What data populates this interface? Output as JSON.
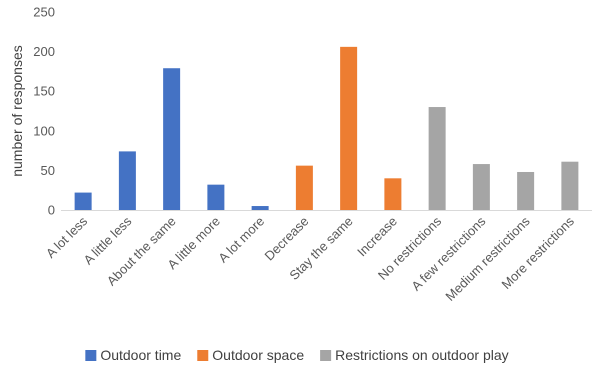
{
  "chart_data": {
    "type": "bar",
    "title": "",
    "xlabel": "",
    "ylabel": "number of responses",
    "ylim": [
      0,
      250
    ],
    "yticks": [
      0,
      50,
      100,
      150,
      200,
      250
    ],
    "grid": false,
    "legend_position": "bottom",
    "categories": [
      "A lot less",
      "A little less",
      "About the same",
      "A little more",
      "A lot more",
      "Decrease",
      "Stay the same",
      "Increase",
      "No restrictions",
      "A few restrictions",
      "Medium restrictions",
      "More restrictions"
    ],
    "series": [
      {
        "name": "Outdoor time",
        "color": "#4472C4",
        "values": [
          22,
          74,
          179,
          32,
          5,
          null,
          null,
          null,
          null,
          null,
          null,
          null
        ]
      },
      {
        "name": "Outdoor space",
        "color": "#ED7D31",
        "values": [
          null,
          null,
          null,
          null,
          null,
          56,
          206,
          40,
          null,
          null,
          null,
          null
        ]
      },
      {
        "name": "Restrictions on outdoor play",
        "color": "#A5A5A5",
        "values": [
          null,
          null,
          null,
          null,
          null,
          null,
          null,
          null,
          130,
          58,
          48,
          61
        ]
      }
    ]
  }
}
